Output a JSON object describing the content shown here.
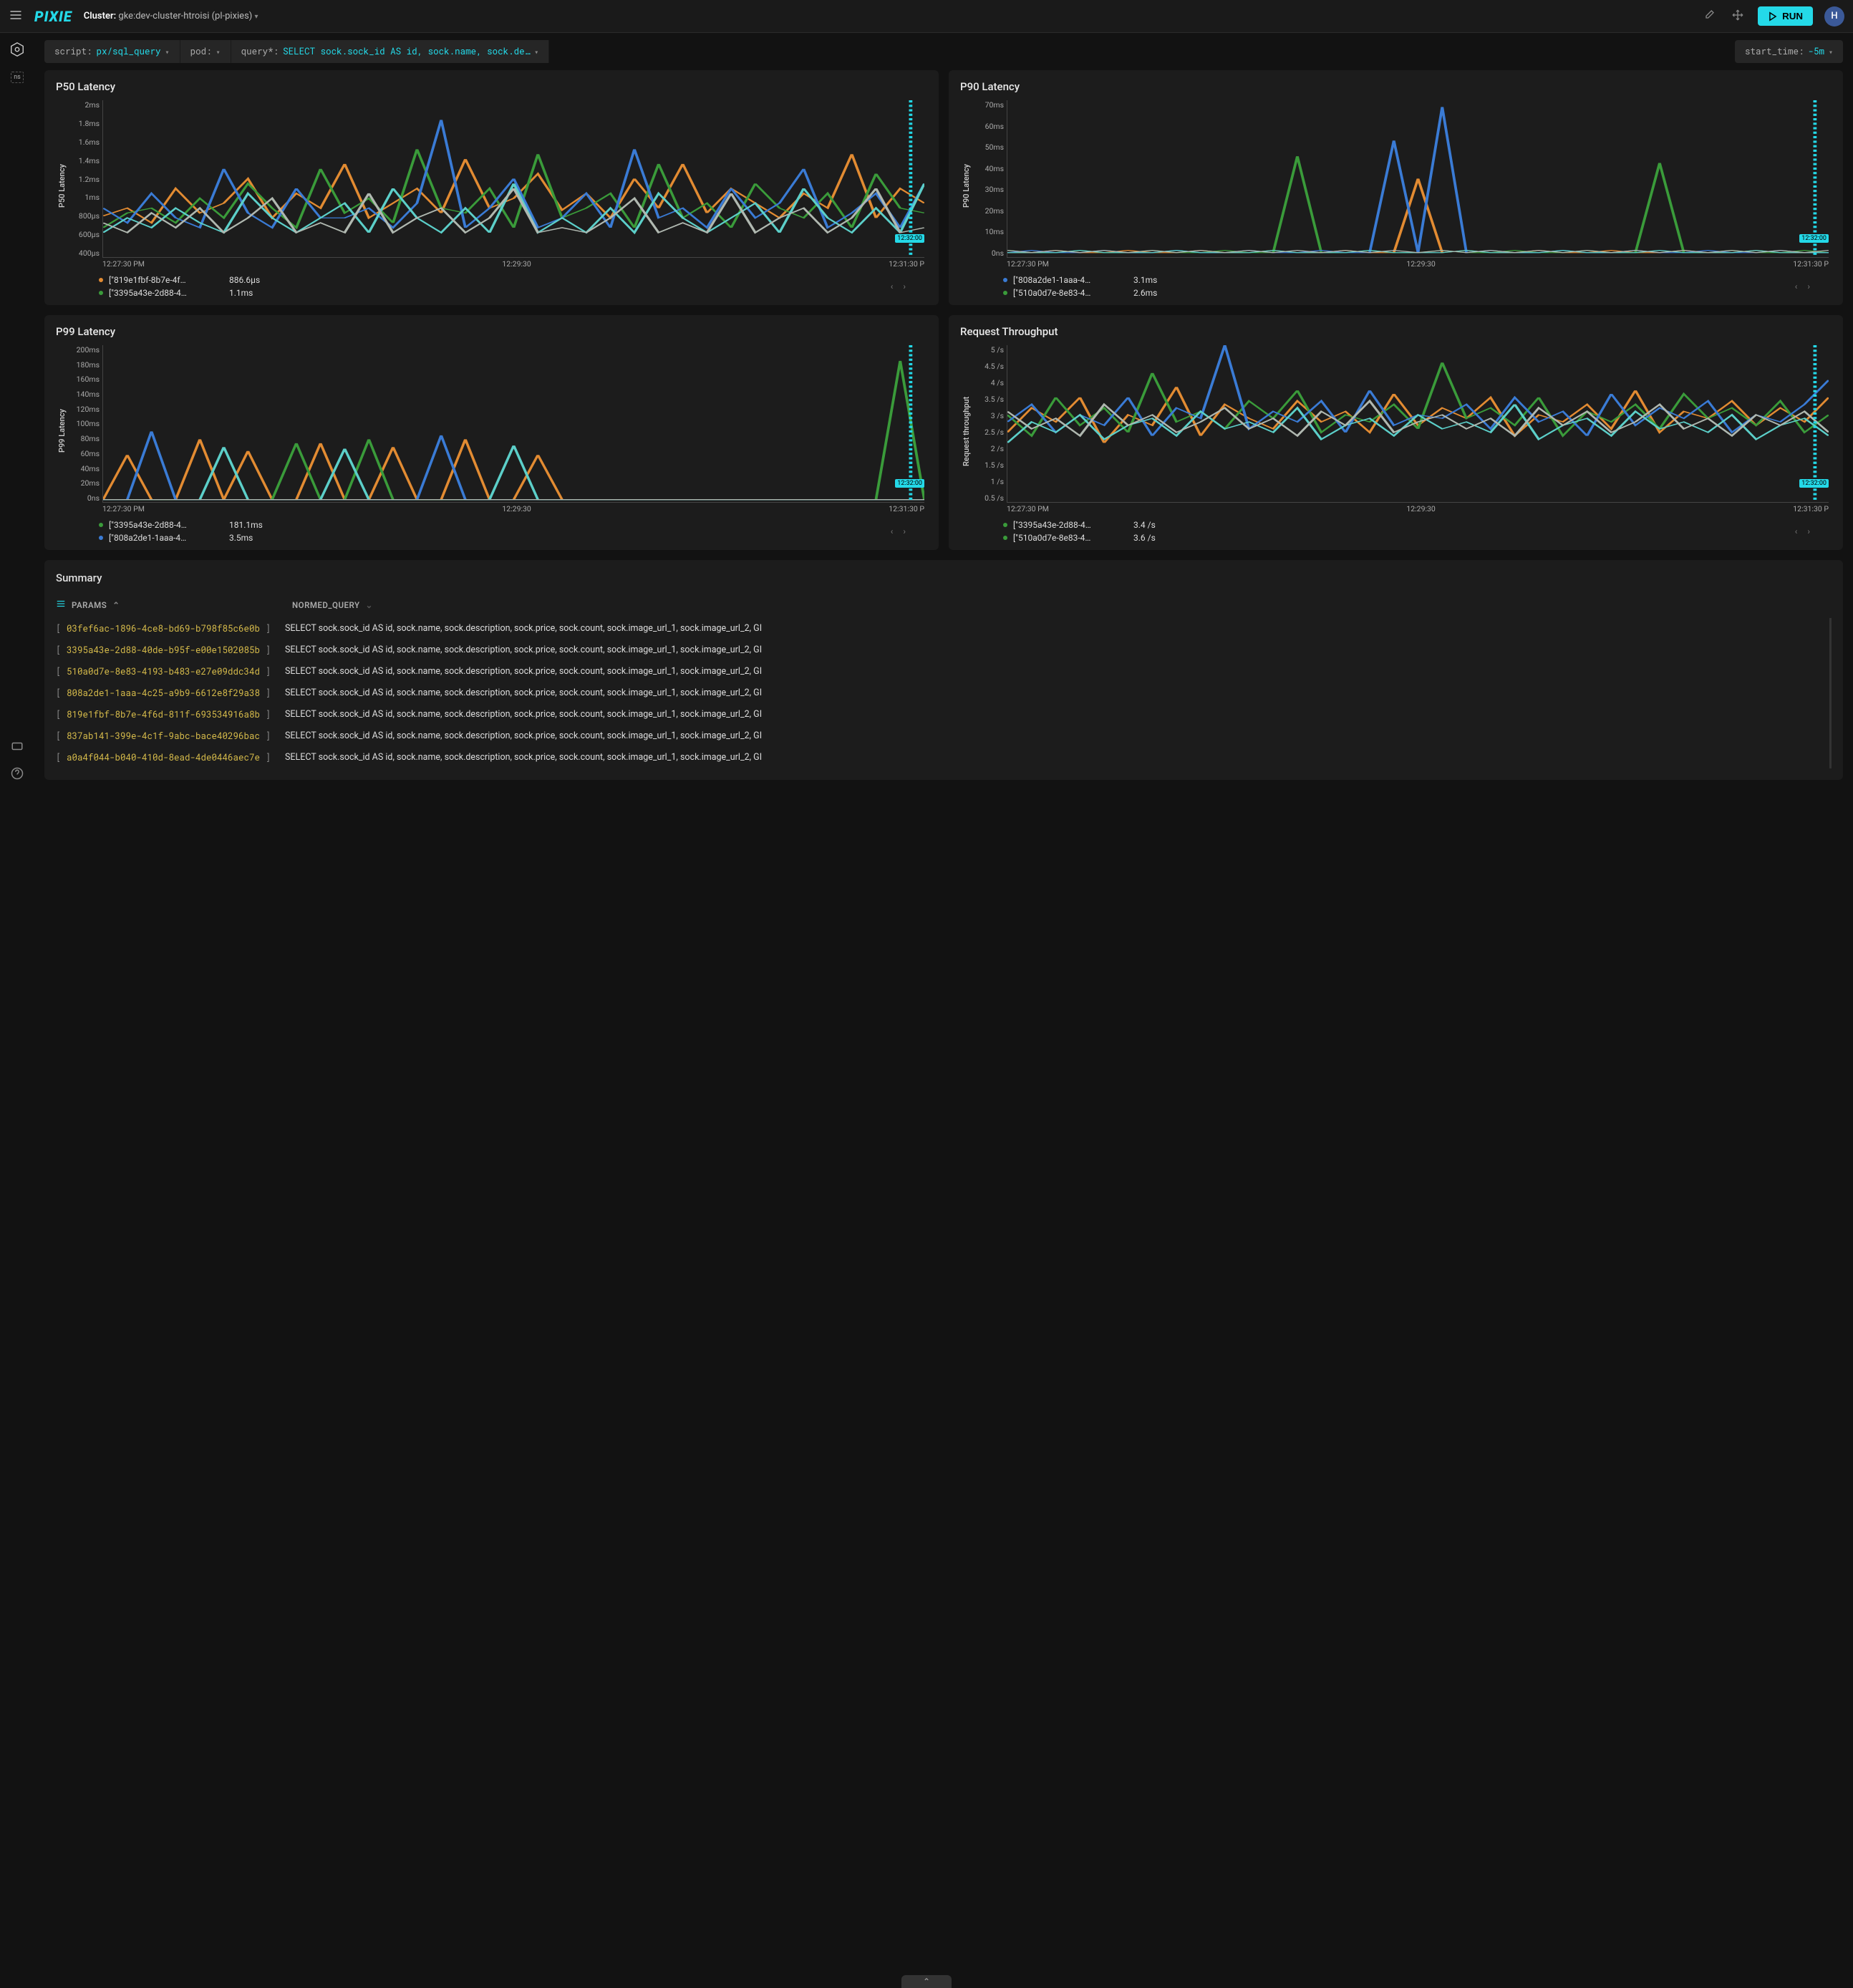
{
  "header": {
    "cluster_label": "Cluster:",
    "cluster_value": "gke:dev-cluster-htroisi (pl-pixies)",
    "run_label": "RUN",
    "avatar_initial": "H"
  },
  "controls": {
    "script_kw": "script:",
    "script_val": "px/sql_query",
    "pod_kw": "pod:",
    "query_kw": "query*:",
    "query_val": "SELECT sock.sock_id AS id, sock.name, sock.de…",
    "start_kw": "start_time:",
    "start_val": "-5m"
  },
  "colors": {
    "accent": "#24d9e8",
    "panel_bg": "#1c1c1c",
    "series": [
      "#e28b32",
      "#3a9b3a",
      "#3a7bd5",
      "#5ccfc9",
      "#b0b8b0",
      "#7aa65a",
      "#4aa0d9"
    ]
  },
  "charts": [
    {
      "title": "P50 Latency",
      "ylabel": "P50 Latency",
      "yticks": [
        "2ms",
        "1.8ms",
        "1.6ms",
        "1.4ms",
        "1.2ms",
        "1ms",
        "800µs",
        "600µs",
        "400µs"
      ],
      "xticks": [
        "12:27:30 PM",
        "12:29:30",
        "12:31:30 P"
      ],
      "time_badge": "12:32:00",
      "legend": [
        {
          "color": "#e28b32",
          "label": "[\"819e1fbf-8b7e-4f…",
          "value": "886.6µs"
        },
        {
          "color": "#3a9b3a",
          "label": "[\"3395a43e-2d88-4…",
          "value": "1.1ms"
        }
      ],
      "ylim": [
        400,
        2000
      ],
      "series": [
        {
          "color": "#e28b32",
          "pts": [
            820,
            900,
            750,
            1100,
            850,
            950,
            1200,
            800,
            1050,
            900,
            1350,
            800,
            950,
            1100,
            850,
            1400,
            900,
            1000,
            1250,
            880,
            1050,
            800,
            1200,
            900,
            1350,
            850,
            1100,
            950,
            800,
            1050,
            900,
            1450,
            800,
            1100,
            950
          ]
        },
        {
          "color": "#3a9b3a",
          "pts": [
            700,
            850,
            900,
            750,
            1000,
            800,
            1150,
            900,
            700,
            1300,
            850,
            1000,
            750,
            1500,
            900,
            850,
            1100,
            700,
            1450,
            800,
            900,
            1050,
            700,
            1350,
            800,
            950,
            700,
            1150,
            900,
            800,
            1050,
            700,
            1250,
            900,
            850
          ]
        },
        {
          "color": "#3a7bd5",
          "pts": [
            900,
            750,
            1050,
            800,
            700,
            1300,
            850,
            700,
            1100,
            800,
            800,
            900,
            700,
            950,
            1800,
            700,
            900,
            1200,
            700,
            800,
            1050,
            700,
            1500,
            800,
            900,
            700,
            1100,
            800,
            950,
            1300,
            700,
            850,
            1050,
            700,
            1150
          ]
        },
        {
          "color": "#5ccfc9",
          "pts": [
            650,
            800,
            700,
            900,
            750,
            650,
            1050,
            800,
            650,
            800,
            950,
            650,
            1100,
            800,
            650,
            900,
            650,
            1150,
            650,
            800,
            650,
            900,
            650,
            1050,
            800,
            650,
            800,
            950,
            650,
            1100,
            800,
            650,
            900,
            650,
            1150
          ]
        },
        {
          "color": "#b0b8b0",
          "pts": [
            750,
            650,
            850,
            700,
            900,
            650,
            800,
            1000,
            650,
            750,
            650,
            1050,
            650,
            800,
            900,
            650,
            800,
            1100,
            650,
            700,
            650,
            800,
            1000,
            650,
            750,
            650,
            1050,
            650,
            800,
            900,
            650,
            800,
            1100,
            650,
            700
          ]
        }
      ]
    },
    {
      "title": "P90 Latency",
      "ylabel": "P90 Latency",
      "yticks": [
        "70ms",
        "60ms",
        "50ms",
        "40ms",
        "30ms",
        "20ms",
        "10ms",
        "0ns"
      ],
      "xticks": [
        "12:27:30 PM",
        "12:29:30",
        "12:31:30 P"
      ],
      "time_badge": "12:32:00",
      "legend": [
        {
          "color": "#3a7bd5",
          "label": "[\"808a2de1-1aaa-4…",
          "value": "3.1ms"
        },
        {
          "color": "#3a9b3a",
          "label": "[\"510a0d7e-8e83-4…",
          "value": "2.6ms"
        }
      ],
      "ylim": [
        0,
        70
      ],
      "series": [
        {
          "color": "#e28b32",
          "pts": [
            2,
            2,
            3,
            2,
            2,
            3,
            2,
            2,
            3,
            2,
            2,
            3,
            2,
            2,
            3,
            2,
            2,
            35,
            2,
            3,
            2,
            2,
            3,
            2,
            2,
            3,
            2,
            2,
            3,
            2,
            2,
            3,
            2,
            2,
            2
          ]
        },
        {
          "color": "#3a9b3a",
          "pts": [
            3,
            2,
            2,
            3,
            2,
            2,
            3,
            2,
            2,
            3,
            2,
            2,
            45,
            2,
            2,
            3,
            2,
            2,
            3,
            2,
            2,
            3,
            2,
            2,
            3,
            2,
            2,
            42,
            2,
            2,
            3,
            2,
            2,
            3,
            2
          ]
        },
        {
          "color": "#3a7bd5",
          "pts": [
            2,
            3,
            2,
            2,
            3,
            2,
            2,
            3,
            2,
            2,
            3,
            2,
            2,
            3,
            2,
            2,
            52,
            2,
            67,
            2,
            3,
            2,
            2,
            3,
            2,
            2,
            3,
            2,
            2,
            3,
            2,
            2,
            3,
            2,
            2
          ]
        },
        {
          "color": "#5ccfc9",
          "pts": [
            2,
            2,
            2,
            3,
            2,
            2,
            2,
            3,
            2,
            2,
            2,
            3,
            2,
            2,
            2,
            3,
            2,
            2,
            2,
            3,
            2,
            2,
            2,
            3,
            2,
            2,
            2,
            3,
            2,
            2,
            2,
            3,
            2,
            2,
            2
          ]
        },
        {
          "color": "#b0b8b0",
          "pts": [
            3,
            2,
            3,
            2,
            3,
            2,
            3,
            2,
            3,
            2,
            3,
            2,
            3,
            2,
            3,
            2,
            3,
            2,
            3,
            2,
            3,
            2,
            3,
            2,
            3,
            2,
            3,
            2,
            3,
            2,
            3,
            2,
            3,
            2,
            3
          ]
        }
      ]
    },
    {
      "title": "P99 Latency",
      "ylabel": "P99 Latency",
      "yticks": [
        "200ms",
        "180ms",
        "160ms",
        "140ms",
        "120ms",
        "100ms",
        "80ms",
        "60ms",
        "40ms",
        "20ms",
        "0ns"
      ],
      "xticks": [
        "12:27:30 PM",
        "12:29:30",
        "12:31:30 P"
      ],
      "time_badge": "12:32:00",
      "legend": [
        {
          "color": "#3a9b3a",
          "label": "[\"3395a43e-2d88-4…",
          "value": "181.1ms"
        },
        {
          "color": "#3a7bd5",
          "label": "[\"808a2de1-1aaa-4…",
          "value": "3.5ms"
        }
      ],
      "ylim": [
        0,
        200
      ],
      "series": [
        {
          "color": "#e28b32",
          "pts": [
            3,
            60,
            3,
            3,
            80,
            3,
            65,
            3,
            3,
            75,
            3,
            3,
            70,
            3,
            3,
            80,
            3,
            3,
            60,
            3,
            3,
            3,
            3,
            3,
            3,
            3,
            3,
            3,
            3,
            3,
            3,
            3,
            3,
            3,
            3
          ]
        },
        {
          "color": "#3a9b3a",
          "pts": [
            3,
            3,
            3,
            3,
            3,
            3,
            3,
            3,
            75,
            3,
            3,
            80,
            3,
            3,
            3,
            3,
            3,
            3,
            3,
            3,
            3,
            3,
            3,
            3,
            3,
            3,
            3,
            3,
            3,
            3,
            3,
            3,
            3,
            180,
            3
          ]
        },
        {
          "color": "#3a7bd5",
          "pts": [
            3,
            3,
            90,
            3,
            3,
            3,
            3,
            3,
            3,
            3,
            3,
            3,
            3,
            3,
            85,
            3,
            3,
            3,
            3,
            3,
            3,
            3,
            3,
            3,
            3,
            3,
            3,
            3,
            3,
            3,
            3,
            3,
            3,
            3,
            3
          ]
        },
        {
          "color": "#5ccfc9",
          "pts": [
            3,
            3,
            3,
            3,
            3,
            70,
            3,
            3,
            3,
            3,
            68,
            3,
            3,
            3,
            3,
            3,
            3,
            72,
            3,
            3,
            3,
            3,
            3,
            3,
            3,
            3,
            3,
            3,
            3,
            3,
            3,
            3,
            3,
            3,
            3
          ]
        },
        {
          "color": "#b0b8b0",
          "pts": [
            3,
            3,
            3,
            3,
            3,
            3,
            3,
            3,
            3,
            3,
            3,
            3,
            3,
            3,
            3,
            3,
            3,
            3,
            3,
            3,
            3,
            3,
            3,
            3,
            3,
            3,
            3,
            3,
            3,
            3,
            3,
            3,
            3,
            3,
            3
          ]
        }
      ]
    },
    {
      "title": "Request Throughput",
      "ylabel": "Request throughput",
      "yticks": [
        "5 /s",
        "4.5 /s",
        "4 /s",
        "3.5 /s",
        "3 /s",
        "2.5 /s",
        "2 /s",
        "1.5 /s",
        "1 /s",
        "0.5 /s"
      ],
      "xticks": [
        "12:27:30 PM",
        "12:29:30",
        "12:31:30 P"
      ],
      "time_badge": "12:32:00",
      "legend": [
        {
          "color": "#3a9b3a",
          "label": "[\"3395a43e-2d88-4…",
          "value": "3.4 /s"
        },
        {
          "color": "#3a9b3a",
          "label": "[\"510a0d7e-8e83-4…",
          "value": "3.6 /s"
        }
      ],
      "ylim": [
        0.5,
        5
      ],
      "series": [
        {
          "color": "#e28b32",
          "pts": [
            2.5,
            3.2,
            2.8,
            3.5,
            2.2,
            3.0,
            2.7,
            3.8,
            2.4,
            3.3,
            2.9,
            2.6,
            3.4,
            2.8,
            3.1,
            2.5,
            3.6,
            2.7,
            3.2,
            2.9,
            3.5,
            2.4,
            3.0,
            2.8,
            3.3,
            2.6,
            3.7,
            2.5,
            3.1,
            2.9,
            3.4,
            2.7,
            3.2,
            2.8,
            3.5
          ]
        },
        {
          "color": "#3a9b3a",
          "pts": [
            3.0,
            2.4,
            3.5,
            2.7,
            3.2,
            2.5,
            4.2,
            2.8,
            3.1,
            2.6,
            3.4,
            2.9,
            3.7,
            2.5,
            3.0,
            2.8,
            3.3,
            2.6,
            4.5,
            2.9,
            3.2,
            2.7,
            3.5,
            2.4,
            3.1,
            2.8,
            3.3,
            2.6,
            3.6,
            2.9,
            3.2,
            2.7,
            3.4,
            2.5,
            3.0
          ]
        },
        {
          "color": "#3a7bd5",
          "pts": [
            2.8,
            3.3,
            2.5,
            3.0,
            2.7,
            3.5,
            2.4,
            3.2,
            2.9,
            5.0,
            2.6,
            3.1,
            2.8,
            3.4,
            2.5,
            3.7,
            2.7,
            3.0,
            2.9,
            3.3,
            2.6,
            3.5,
            2.8,
            3.1,
            2.4,
            3.6,
            2.7,
            3.2,
            2.9,
            3.4,
            2.5,
            3.0,
            2.8,
            3.3,
            4.0
          ]
        },
        {
          "color": "#5ccfc9",
          "pts": [
            2.2,
            2.8,
            2.5,
            3.0,
            2.3,
            2.7,
            2.9,
            2.4,
            3.1,
            2.6,
            2.8,
            2.5,
            3.2,
            2.3,
            2.7,
            2.9,
            2.4,
            3.0,
            2.6,
            2.8,
            2.5,
            3.3,
            2.3,
            2.7,
            2.9,
            2.4,
            3.1,
            2.6,
            2.8,
            2.5,
            3.0,
            2.3,
            2.7,
            2.9,
            2.4
          ]
        },
        {
          "color": "#b0b8b0",
          "pts": [
            3.1,
            2.6,
            2.9,
            2.4,
            3.3,
            2.7,
            3.0,
            2.5,
            2.8,
            3.2,
            2.6,
            2.9,
            2.4,
            3.1,
            2.7,
            3.4,
            2.5,
            2.8,
            3.0,
            2.6,
            2.9,
            2.4,
            3.2,
            2.7,
            3.1,
            2.5,
            2.8,
            3.3,
            2.6,
            2.9,
            2.4,
            3.0,
            2.7,
            3.1,
            2.5
          ]
        }
      ]
    }
  ],
  "summary": {
    "title": "Summary",
    "col_params": "PARAMS",
    "col_query": "NORMED_QUERY",
    "query_text": "SELECT sock.sock_id AS id, sock.name, sock.description, sock.price, sock.count, sock.image_url_1, sock.image_url_2, GI",
    "rows": [
      "03fef6ac-1896-4ce8-bd69-b798f85c6e0b",
      "3395a43e-2d88-40de-b95f-e00e1502085b",
      "510a0d7e-8e83-4193-b483-e27e09ddc34d",
      "808a2de1-1aaa-4c25-a9b9-6612e8f29a38",
      "819e1fbf-8b7e-4f6d-811f-693534916a8b",
      "837ab141-399e-4c1f-9abc-bace40296bac",
      "a0a4f044-b040-410d-8ead-4de0446aec7e"
    ]
  }
}
